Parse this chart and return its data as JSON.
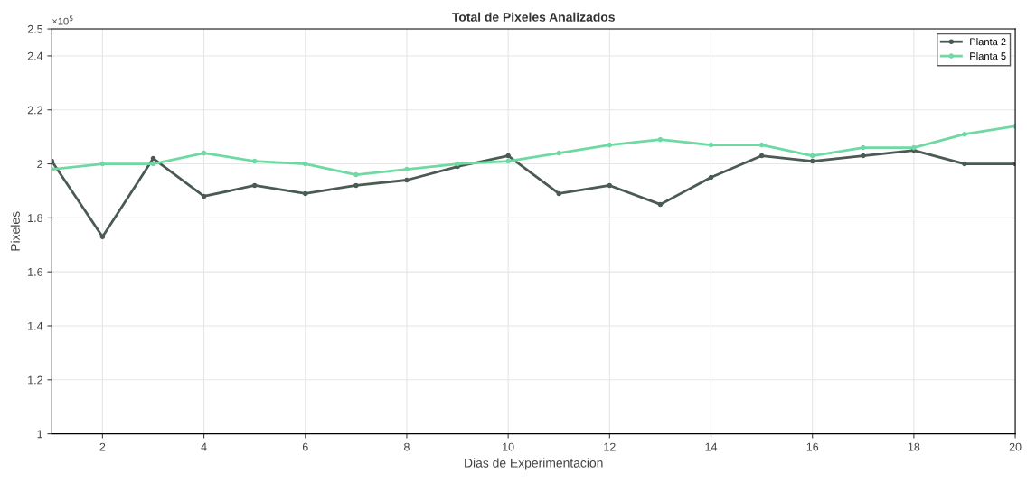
{
  "chart_data": {
    "type": "line",
    "title": "Total de Pixeles Analizados",
    "xlabel": "Dias de Experimentacion",
    "ylabel": "Pixeles",
    "annotations": [
      "×10$^{5}$"
    ],
    "x": [
      1,
      2,
      3,
      4,
      5,
      6,
      7,
      8,
      9,
      10,
      11,
      12,
      13,
      14,
      15,
      16,
      17,
      18,
      19,
      20
    ],
    "series": [
      {
        "name": "Planta 2",
        "color": "#4b5b53",
        "values": [
          2.01,
          1.73,
          2.02,
          1.88,
          1.92,
          1.89,
          1.92,
          1.94,
          1.99,
          2.03,
          1.89,
          1.92,
          1.85,
          1.95,
          2.03,
          2.01,
          2.03,
          2.05,
          2.0,
          2.0
        ]
      },
      {
        "name": "Planta 5",
        "color": "#6fd9a4",
        "values": [
          1.98,
          2.0,
          2.0,
          2.04,
          2.01,
          2.0,
          1.96,
          1.98,
          2.0,
          2.01,
          2.04,
          2.07,
          2.09,
          2.07,
          2.07,
          2.03,
          2.06,
          2.06,
          2.11,
          2.14
        ]
      }
    ],
    "xlim": [
      1,
      20
    ],
    "xticks": [
      2,
      4,
      6,
      8,
      10,
      12,
      14,
      16,
      18,
      20
    ],
    "ylim": [
      1,
      2.5
    ],
    "yticks": [
      1,
      1.2,
      1.4,
      1.6,
      1.8,
      2,
      2.2,
      2.4,
      2.5
    ],
    "grid": true,
    "legend": "top right",
    "marker": "circle",
    "line_style": "solid"
  }
}
